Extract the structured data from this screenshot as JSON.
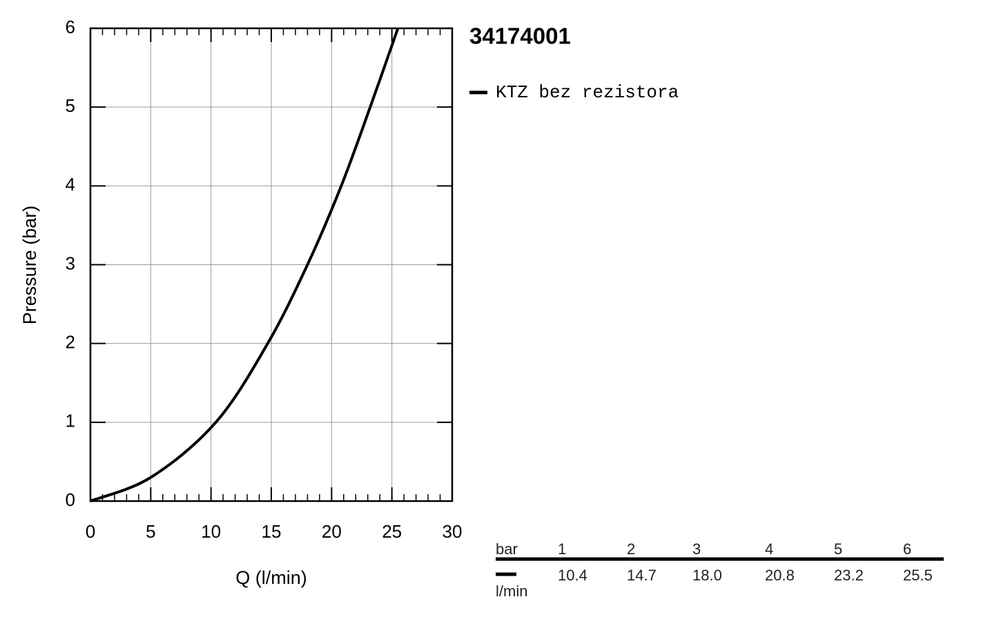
{
  "chart_data": {
    "type": "line",
    "title": "34174001",
    "x_label": "Q (l/min)",
    "y_label": "Pressure (bar)",
    "x": [
      0,
      5,
      10.4,
      14.7,
      18.0,
      20.8,
      23.2,
      25.5
    ],
    "series": [
      {
        "name": "KTZ bez rezistora",
        "color": "#000000",
        "values": [
          0,
          0.3,
          1,
          2,
          3,
          4,
          5,
          6
        ]
      }
    ],
    "xlim": [
      0,
      30
    ],
    "xticks": [
      0,
      5,
      10,
      15,
      20,
      25,
      30
    ],
    "ylim": [
      0,
      6
    ],
    "yticks": [
      0,
      1,
      2,
      3,
      4,
      5,
      6
    ],
    "grid": true
  },
  "table": {
    "header_label": "bar",
    "unit_label": "l/min",
    "pressures": [
      1,
      2,
      3,
      4,
      5,
      6
    ],
    "flows": [
      "10.4",
      "14.7",
      "18.0",
      "20.8",
      "23.2",
      "25.5"
    ]
  }
}
